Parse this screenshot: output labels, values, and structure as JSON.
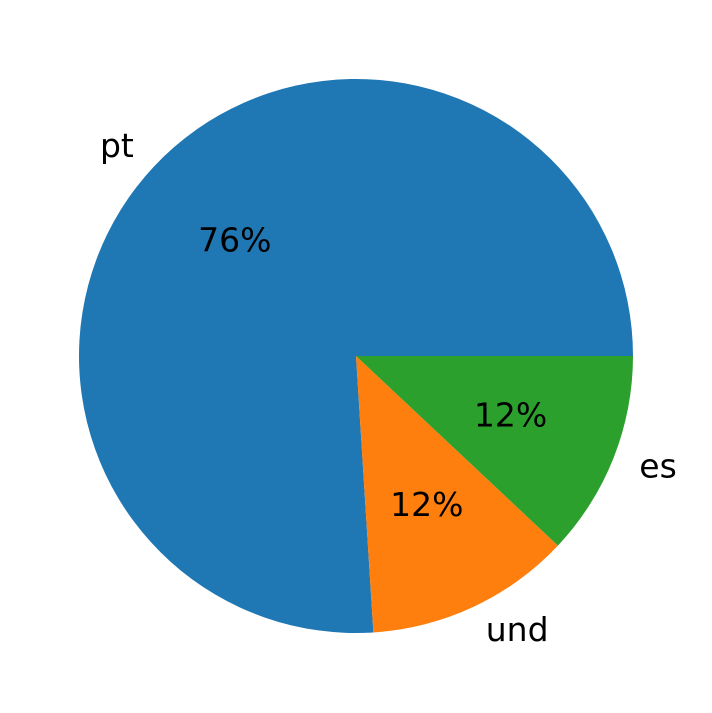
{
  "chart_data": {
    "type": "pie",
    "categories": [
      "pt",
      "und",
      "es"
    ],
    "values": [
      76,
      12,
      12
    ],
    "value_labels": [
      "76%",
      "12%",
      "12%"
    ],
    "colors": [
      "#1f77b4",
      "#ff7f0e",
      "#2ca02c"
    ]
  }
}
